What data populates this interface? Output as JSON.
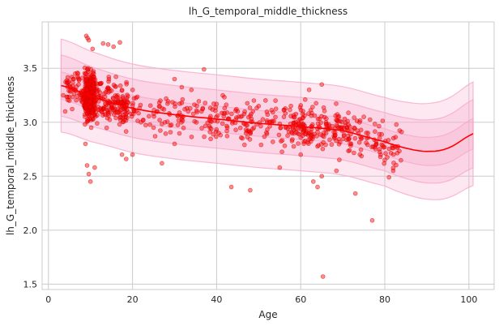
{
  "chart_data": {
    "type": "scatter",
    "title": "lh_G_temporal_middle_thickness",
    "xlabel": "Age",
    "ylabel": "lh_G_temporal_middle_thickness",
    "xlim": [
      -1.5,
      106
    ],
    "ylim": [
      1.45,
      3.93
    ],
    "xticks": [
      0,
      20,
      40,
      60,
      80,
      100
    ],
    "yticks": [
      1.5,
      2.0,
      2.5,
      3.0,
      3.5
    ],
    "xtick_labels": [
      "0",
      "20",
      "40",
      "60",
      "80",
      "100"
    ],
    "ytick_labels": [
      "1.5",
      "2.0",
      "2.5",
      "3.0",
      "3.5"
    ],
    "grid": true,
    "colors": {
      "points": "#ff0000",
      "median_line": "#ff0000",
      "band": "#f7a8c9"
    },
    "median_curve": {
      "x": [
        3,
        10,
        20,
        30,
        40,
        50,
        60,
        70,
        80,
        85,
        90,
        95,
        101.5
      ],
      "y": [
        3.34,
        3.24,
        3.13,
        3.07,
        3.03,
        2.99,
        2.96,
        2.92,
        2.82,
        2.76,
        2.73,
        2.76,
        2.9
      ]
    },
    "bands": [
      {
        "offset_lo": -0.41,
        "offset_hi": 0.41
      },
      {
        "offset_lo": -0.27,
        "offset_hi": 0.27
      },
      {
        "offset_lo": -0.12,
        "offset_hi": 0.12
      }
    ],
    "scatter_points": [
      [
        9.0,
        3.8
      ],
      [
        9.3,
        3.78
      ],
      [
        9.6,
        3.76
      ],
      [
        10.5,
        3.68
      ],
      [
        13.0,
        3.73
      ],
      [
        14.2,
        3.72
      ],
      [
        17.0,
        3.74
      ],
      [
        15.5,
        3.7
      ],
      [
        8.8,
        2.8
      ],
      [
        9.2,
        2.6
      ],
      [
        9.6,
        2.52
      ],
      [
        10.0,
        2.45
      ],
      [
        11.0,
        2.58
      ],
      [
        17.5,
        2.7
      ],
      [
        18.5,
        2.66
      ],
      [
        20.0,
        2.7
      ],
      [
        30.0,
        3.4
      ],
      [
        37.0,
        3.49
      ],
      [
        34.0,
        3.3
      ],
      [
        28.0,
        3.22
      ],
      [
        26.0,
        3.1
      ],
      [
        25.0,
        2.95
      ],
      [
        22.0,
        3.0
      ],
      [
        30.0,
        2.8
      ],
      [
        27.0,
        2.62
      ],
      [
        45.0,
        3.1
      ],
      [
        50.0,
        3.15
      ],
      [
        47.0,
        2.9
      ],
      [
        52.0,
        3.0
      ],
      [
        54.0,
        3.2
      ],
      [
        56.0,
        3.05
      ],
      [
        43.5,
        2.4
      ],
      [
        48.0,
        2.37
      ],
      [
        55.0,
        2.58
      ],
      [
        60.0,
        2.7
      ],
      [
        65.0,
        3.35
      ],
      [
        62.0,
        3.3
      ],
      [
        66.0,
        3.0
      ],
      [
        68.0,
        2.85
      ],
      [
        70.0,
        2.95
      ],
      [
        72.0,
        2.8
      ],
      [
        74.0,
        3.0
      ],
      [
        63.0,
        2.45
      ],
      [
        64.0,
        2.4
      ],
      [
        65.0,
        2.5
      ],
      [
        68.5,
        2.55
      ],
      [
        73.0,
        2.34
      ],
      [
        77.0,
        2.09
      ],
      [
        65.3,
        1.57
      ],
      [
        76.0,
        2.9
      ],
      [
        78.0,
        2.8
      ],
      [
        80.0,
        2.65
      ],
      [
        81.0,
        2.49
      ],
      [
        82.0,
        2.55
      ],
      [
        84.0,
        2.91
      ],
      [
        79.0,
        2.7
      ],
      [
        75.0,
        3.05
      ],
      [
        3.5,
        3.25
      ],
      [
        4.0,
        3.1
      ],
      [
        5.0,
        3.2
      ],
      [
        6.0,
        3.4
      ],
      [
        7.0,
        3.45
      ]
    ]
  }
}
